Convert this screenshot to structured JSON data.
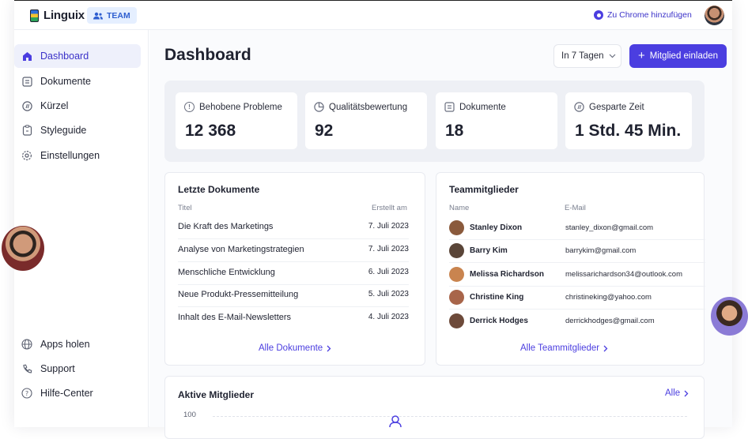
{
  "app": {
    "name": "Linguix",
    "team_badge": "TEAM",
    "chrome_link": "Zu Chrome hinzufügen"
  },
  "sidebar": {
    "items": [
      {
        "label": "Dashboard",
        "icon": "home-icon",
        "active": true
      },
      {
        "label": "Dokumente",
        "icon": "document-icon"
      },
      {
        "label": "Kürzel",
        "icon": "shortcut-icon"
      },
      {
        "label": "Styleguide",
        "icon": "clipboard-icon"
      },
      {
        "label": "Einstellungen",
        "icon": "gear-icon"
      }
    ],
    "bottom_items": [
      {
        "label": "Apps holen",
        "icon": "globe-icon"
      },
      {
        "label": "Support",
        "icon": "phone-icon"
      },
      {
        "label": "Hilfe-Center",
        "icon": "help-icon"
      }
    ]
  },
  "header": {
    "title": "Dashboard",
    "range": "In 7 Tagen",
    "invite_button": "Mitglied einladen"
  },
  "stats": [
    {
      "label": "Behobene Probleme",
      "value": "12 368",
      "icon": "alert-icon"
    },
    {
      "label": "Qualitätsbewertung",
      "value": "92",
      "icon": "pie-icon"
    },
    {
      "label": "Dokumente",
      "value": "18",
      "icon": "document-icon"
    },
    {
      "label": "Gesparte Zeit",
      "value": "1 Std. 45 Min.",
      "icon": "shortcut-icon"
    }
  ],
  "recent_docs": {
    "title": "Letzte Dokumente",
    "col_title": "Titel",
    "col_created": "Erstellt am",
    "rows": [
      {
        "title": "Die Kraft des Marketings",
        "date": "7. Juli 2023"
      },
      {
        "title": "Analyse von Marketingstrategien",
        "date": "7. Juli 2023"
      },
      {
        "title": "Menschliche Entwicklung",
        "date": "6. Juli 2023"
      },
      {
        "title": "Neue Produkt-Pressemitteilung",
        "date": "5. Juli 2023"
      },
      {
        "title": "Inhalt des E-Mail-Newsletters",
        "date": "4. Juli 2023"
      }
    ],
    "link": "Alle Dokumente"
  },
  "team": {
    "title": "Teammitglieder",
    "col_name": "Name",
    "col_email": "E-Mail",
    "rows": [
      {
        "name": "Stanley Dixon",
        "email": "stanley_dixon@gmail.com",
        "color": "#8a5a3c"
      },
      {
        "name": "Barry Kim",
        "email": "barrykim@gmail.com",
        "color": "#5a4538"
      },
      {
        "name": "Melissa Richardson",
        "email": "melissarichardson34@outlook.com",
        "color": "#c9844f"
      },
      {
        "name": "Christine King",
        "email": "christineking@yahoo.com",
        "color": "#a8654a"
      },
      {
        "name": "Derrick Hodges",
        "email": "derrickhodges@gmail.com",
        "color": "#6d4a3a"
      }
    ],
    "link": "Alle Teammitglieder"
  },
  "active_members": {
    "title": "Aktive Mitglieder",
    "link": "Alle",
    "y_tick": "100"
  },
  "colors": {
    "accent": "#4b3ee0",
    "active_bg": "#eef0fb"
  }
}
